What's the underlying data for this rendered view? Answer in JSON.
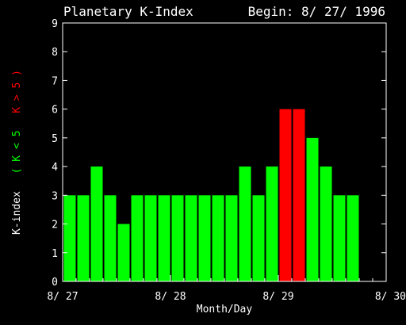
{
  "chart_data": {
    "type": "bar",
    "title": "Planetary K-Index",
    "begin_label": "Begin: 8/ 27/ 1996",
    "xlabel": "Month/Day",
    "ylabel_parts": [
      "K-index",
      "( K < 5",
      "K > 5 )"
    ],
    "ylim": [
      0,
      9
    ],
    "yticks": [
      "0",
      "1",
      "2",
      "3",
      "4",
      "5",
      "6",
      "7",
      "8",
      "9"
    ],
    "xticks": [
      {
        "label": "8/ 27",
        "value": 0
      },
      {
        "label": "8/ 28",
        "value": 8
      },
      {
        "label": "8/ 29",
        "value": 16
      },
      {
        "label": "8/ 30",
        "value": 24
      }
    ],
    "threshold": 5,
    "values": [
      3,
      3,
      4,
      3,
      2,
      3,
      3,
      3,
      3,
      3,
      3,
      3,
      3,
      4,
      3,
      4,
      6,
      6,
      5,
      4,
      3,
      3
    ],
    "colors": {
      "low": "#00ff00",
      "high": "#ff0000",
      "axis": "#ffffff",
      "background": "#000000"
    }
  }
}
